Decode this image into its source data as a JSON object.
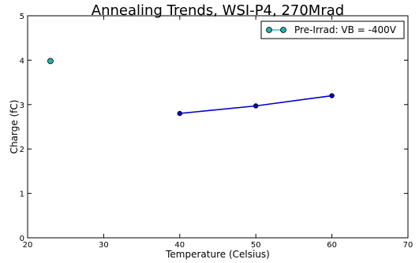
{
  "chart_data": {
    "type": "line",
    "title": "Annealing Trends, WSI-P4, 270Mrad",
    "xlabel": "Temperature (Celsius)",
    "ylabel": "Charge (fC)",
    "xlim": [
      20,
      70
    ],
    "ylim": [
      0,
      5
    ],
    "xticks": [
      20,
      30,
      40,
      50,
      60,
      70
    ],
    "yticks": [
      0,
      1,
      2,
      3,
      4,
      5
    ],
    "grid": false,
    "legend_position": "top-right",
    "series": [
      {
        "name": "Pre-Irrad: VB = -400V",
        "color": "#20b2aa",
        "marker": "circle",
        "line": true,
        "x": [
          23
        ],
        "y": [
          3.98
        ]
      },
      {
        "color": "#0000cc",
        "marker": "circle",
        "line": true,
        "x": [
          40,
          50,
          60
        ],
        "y": [
          2.8,
          2.97,
          3.2
        ]
      }
    ]
  }
}
